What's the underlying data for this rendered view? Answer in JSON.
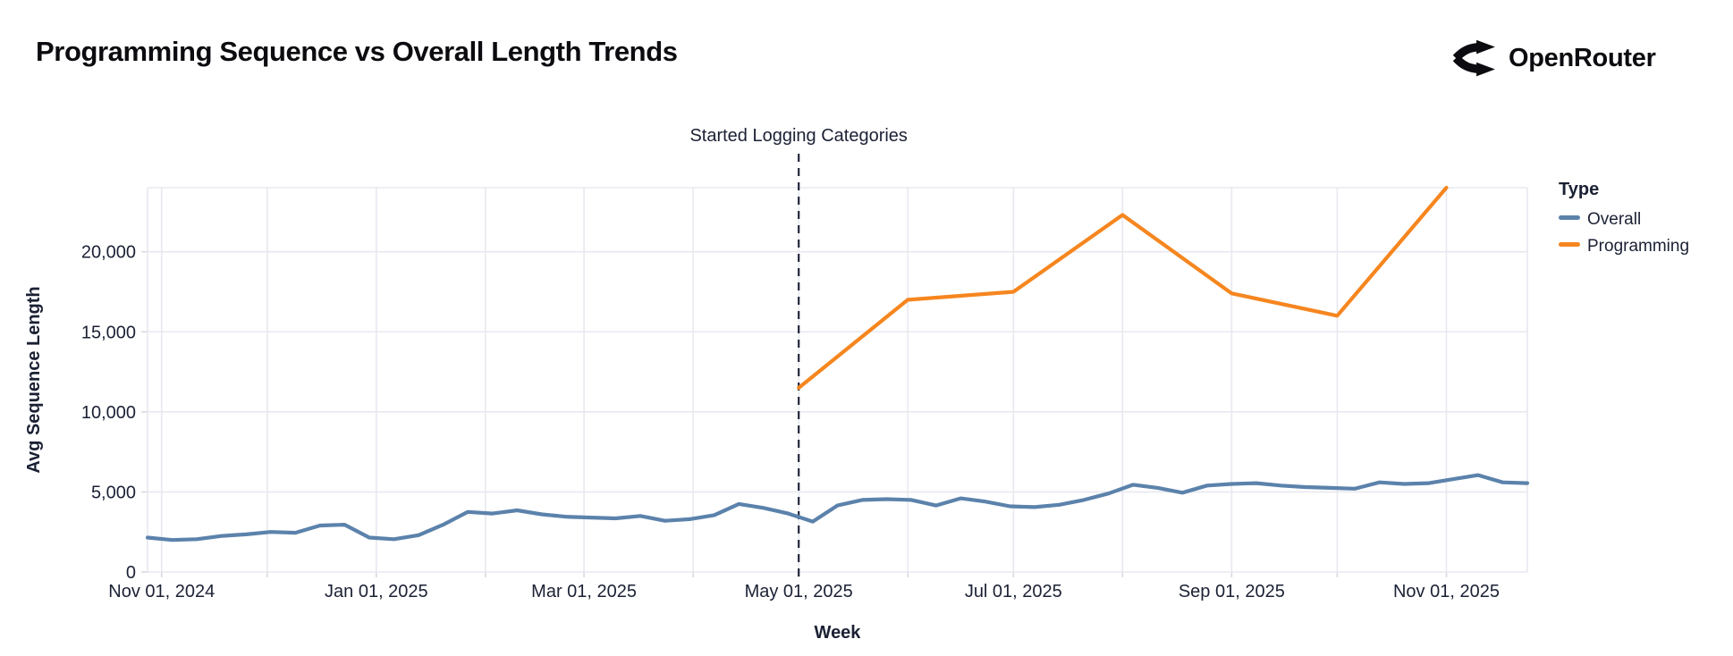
{
  "page": {
    "title": "Programming Sequence vs Overall Length Trends"
  },
  "logo": {
    "text": "OpenRouter",
    "icon": "openrouter-fork-icon"
  },
  "chart_data": {
    "type": "line",
    "title": "Programming Sequence vs Overall Length Trends",
    "xlabel": "Week",
    "ylabel": "Avg Sequence Length",
    "ylim": [
      0,
      24000
    ],
    "grid": true,
    "legend_title": "Type",
    "legend_position": "right",
    "colors": {
      "overall": "#5b82ab",
      "programming": "#f6861f",
      "gridline": "#e8e8f0",
      "tick": "#d9d9e3",
      "axis_text": "#1b2134",
      "annotation_line": "#20263a"
    },
    "y_ticks": [
      {
        "value": 0,
        "label": "0"
      },
      {
        "value": 5000,
        "label": "5,000"
      },
      {
        "value": 10000,
        "label": "10,000"
      },
      {
        "value": 15000,
        "label": "15,000"
      },
      {
        "value": 20000,
        "label": "20,000"
      }
    ],
    "x_ticks": [
      {
        "date": "2024-11-01",
        "label": "Nov 01, 2024"
      },
      {
        "date": "2025-01-01",
        "label": "Jan 01, 2025"
      },
      {
        "date": "2025-03-01",
        "label": "Mar 01, 2025"
      },
      {
        "date": "2025-05-01",
        "label": "May 01, 2025"
      },
      {
        "date": "2025-07-01",
        "label": "Jul 01, 2025"
      },
      {
        "date": "2025-09-01",
        "label": "Sep 01, 2025"
      },
      {
        "date": "2025-11-01",
        "label": "Nov 01, 2025"
      }
    ],
    "annotation": {
      "text": "Started Logging Categories",
      "date": "2025-05-01"
    },
    "series": [
      {
        "name": "Overall",
        "color": "#5b82ab",
        "x": [
          "2024-10-28",
          "2024-11-04",
          "2024-11-11",
          "2024-11-18",
          "2024-11-25",
          "2024-12-02",
          "2024-12-09",
          "2024-12-16",
          "2024-12-23",
          "2024-12-30",
          "2025-01-06",
          "2025-01-13",
          "2025-01-20",
          "2025-01-27",
          "2025-02-03",
          "2025-02-10",
          "2025-02-17",
          "2025-02-24",
          "2025-03-03",
          "2025-03-10",
          "2025-03-17",
          "2025-03-24",
          "2025-03-31",
          "2025-04-07",
          "2025-04-14",
          "2025-04-21",
          "2025-04-28",
          "2025-05-05",
          "2025-05-12",
          "2025-05-19",
          "2025-05-26",
          "2025-06-02",
          "2025-06-09",
          "2025-06-16",
          "2025-06-23",
          "2025-06-30",
          "2025-07-07",
          "2025-07-14",
          "2025-07-21",
          "2025-07-28",
          "2025-08-04",
          "2025-08-11",
          "2025-08-18",
          "2025-08-25",
          "2025-09-01",
          "2025-09-08",
          "2025-09-15",
          "2025-09-22",
          "2025-09-29",
          "2025-10-06",
          "2025-10-13",
          "2025-10-20",
          "2025-10-27",
          "2025-11-03",
          "2025-11-10",
          "2025-11-17",
          "2025-11-24"
        ],
        "values": [
          2150,
          2000,
          2050,
          2250,
          2350,
          2500,
          2450,
          2900,
          2950,
          2150,
          2050,
          2300,
          2950,
          3750,
          3650,
          3850,
          3600,
          3450,
          3400,
          3350,
          3500,
          3200,
          3300,
          3550,
          4250,
          4000,
          3650,
          3150,
          4150,
          4500,
          4550,
          4500,
          4150,
          4600,
          4400,
          4100,
          4050,
          4200,
          4500,
          4900,
          5450,
          5250,
          4950,
          5400,
          5500,
          5550,
          5400,
          5300,
          5250,
          5200,
          5600,
          5500,
          5550,
          5800,
          6050,
          5600,
          5550
        ]
      },
      {
        "name": "Programming",
        "color": "#f6861f",
        "x": [
          "2025-05-01",
          "2025-06-01",
          "2025-07-01",
          "2025-08-01",
          "2025-09-01",
          "2025-10-01",
          "2025-11-01"
        ],
        "values": [
          11500,
          17000,
          17500,
          22300,
          17400,
          16000,
          24000
        ]
      }
    ]
  }
}
